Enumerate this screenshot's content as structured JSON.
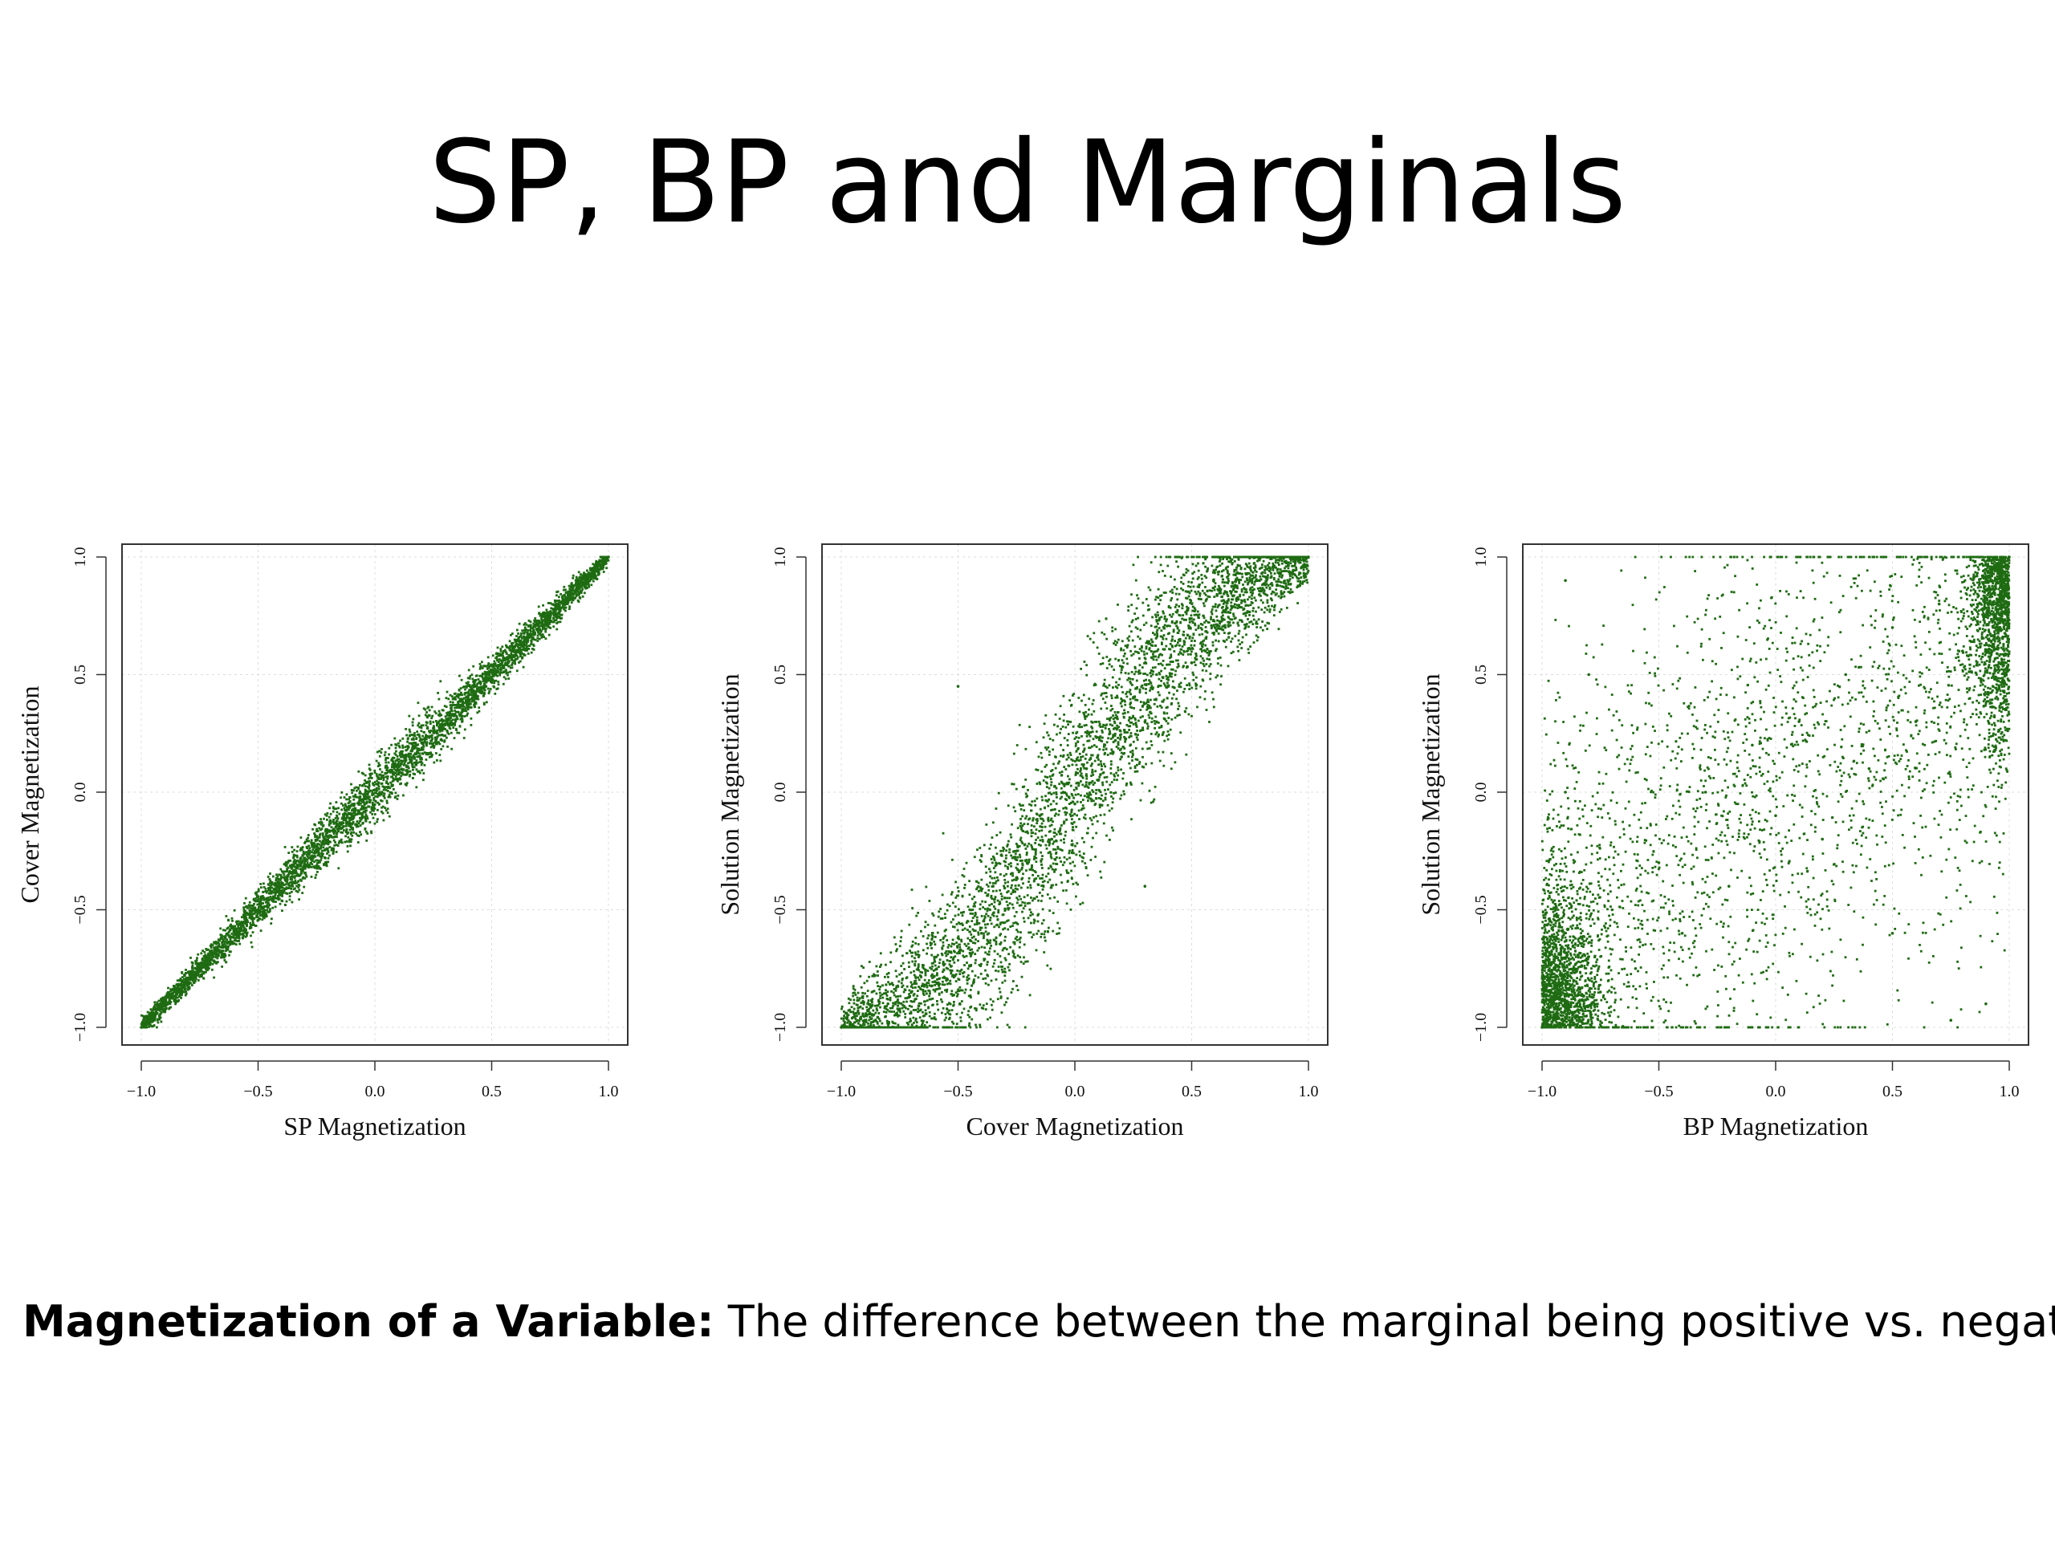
{
  "slide": {
    "title": "SP, BP and Marginals",
    "definition_term": "Magnetization of a Variable:",
    "definition_text": " The difference between the marginal being positive vs. negative",
    "point_color": "#1e6b12"
  },
  "chart_data": [
    {
      "type": "scatter",
      "title": "",
      "xlabel": "SP Magnetization",
      "ylabel": "Cover Magnetization",
      "xlim": [
        -1.0,
        1.0
      ],
      "ylim": [
        -1.0,
        1.0
      ],
      "xticks": [
        -1.0,
        -0.5,
        0.0,
        0.5,
        1.0
      ],
      "yticks": [
        -1.0,
        -0.5,
        0.0,
        0.5,
        1.0
      ],
      "xtick_labels": [
        "−1.0",
        "−0.5",
        "0.0",
        "0.5",
        "1.0"
      ],
      "ytick_labels": [
        "−1.0",
        "−0.5",
        "0.0",
        "0.5",
        "1.0"
      ],
      "grid": true,
      "trend": "tight linear band along y = x",
      "points": [
        [
          -1.0,
          -1.0
        ],
        [
          -0.95,
          -0.96
        ],
        [
          -0.9,
          -0.89
        ],
        [
          -0.85,
          -0.86
        ],
        [
          -0.8,
          -0.79
        ],
        [
          -0.75,
          -0.76
        ],
        [
          -0.7,
          -0.69
        ],
        [
          -0.65,
          -0.66
        ],
        [
          -0.6,
          -0.58
        ],
        [
          -0.55,
          -0.56
        ],
        [
          -0.5,
          -0.5
        ],
        [
          -0.45,
          -0.43
        ],
        [
          -0.4,
          -0.42
        ],
        [
          -0.35,
          -0.34
        ],
        [
          -0.3,
          -0.31
        ],
        [
          -0.25,
          -0.23
        ],
        [
          -0.2,
          -0.22
        ],
        [
          -0.15,
          -0.13
        ],
        [
          -0.1,
          -0.11
        ],
        [
          -0.05,
          -0.03
        ],
        [
          0.0,
          0.01
        ],
        [
          0.05,
          0.04
        ],
        [
          0.1,
          0.12
        ],
        [
          0.15,
          0.14
        ],
        [
          0.2,
          0.21
        ],
        [
          0.25,
          0.26
        ],
        [
          0.3,
          0.29
        ],
        [
          0.35,
          0.37
        ],
        [
          0.4,
          0.39
        ],
        [
          0.45,
          0.47
        ],
        [
          0.5,
          0.49
        ],
        [
          0.55,
          0.57
        ],
        [
          0.6,
          0.58
        ],
        [
          0.65,
          0.66
        ],
        [
          0.7,
          0.71
        ],
        [
          0.75,
          0.74
        ],
        [
          0.8,
          0.81
        ],
        [
          0.85,
          0.84
        ],
        [
          0.9,
          0.91
        ],
        [
          0.95,
          0.94
        ],
        [
          1.0,
          1.0
        ]
      ]
    },
    {
      "type": "scatter",
      "title": "",
      "xlabel": "Cover Magnetization",
      "ylabel": "Solution Magnetization",
      "xlim": [
        -1.0,
        1.0
      ],
      "ylim": [
        -1.0,
        1.0
      ],
      "xticks": [
        -1.0,
        -0.5,
        0.0,
        0.5,
        1.0
      ],
      "yticks": [
        -1.0,
        -0.5,
        0.0,
        0.5,
        1.0
      ],
      "xtick_labels": [
        "−1.0",
        "−0.5",
        "0.0",
        "0.5",
        "1.0"
      ],
      "ytick_labels": [
        "−1.0",
        "−0.5",
        "0.0",
        "0.5",
        "1.0"
      ],
      "grid": true,
      "trend": "broad S-shaped band, saturating near (-1,-1) and (1,1)",
      "points": [
        [
          -1.0,
          -1.0
        ],
        [
          -0.9,
          -0.97
        ],
        [
          -0.8,
          -0.9
        ],
        [
          -0.7,
          -0.85
        ],
        [
          -0.6,
          -0.72
        ],
        [
          -0.55,
          -0.8
        ],
        [
          -0.5,
          -0.62
        ],
        [
          -0.45,
          -0.5
        ],
        [
          -0.4,
          -0.6
        ],
        [
          -0.35,
          -0.4
        ],
        [
          -0.3,
          -0.45
        ],
        [
          -0.25,
          -0.25
        ],
        [
          -0.2,
          -0.3
        ],
        [
          -0.15,
          -0.1
        ],
        [
          -0.1,
          -0.2
        ],
        [
          -0.05,
          0.0
        ],
        [
          0.0,
          -0.05
        ],
        [
          0.05,
          0.1
        ],
        [
          0.1,
          0.05
        ],
        [
          0.15,
          0.25
        ],
        [
          0.2,
          0.15
        ],
        [
          0.25,
          0.4
        ],
        [
          0.3,
          0.3
        ],
        [
          0.35,
          0.5
        ],
        [
          0.4,
          0.45
        ],
        [
          0.45,
          0.65
        ],
        [
          0.5,
          0.55
        ],
        [
          0.55,
          0.75
        ],
        [
          0.6,
          0.7
        ],
        [
          0.65,
          0.85
        ],
        [
          0.7,
          0.82
        ],
        [
          0.75,
          0.9
        ],
        [
          0.8,
          0.93
        ],
        [
          0.85,
          0.96
        ],
        [
          0.9,
          0.98
        ],
        [
          0.95,
          0.99
        ],
        [
          1.0,
          1.0
        ],
        [
          -0.5,
          0.45
        ],
        [
          0.3,
          -0.4
        ],
        [
          0.5,
          0.55
        ]
      ]
    },
    {
      "type": "scatter",
      "title": "",
      "xlabel": "BP Magnetization",
      "ylabel": "Solution Magnetization",
      "xlim": [
        -1.0,
        1.0
      ],
      "ylim": [
        -1.0,
        1.0
      ],
      "xticks": [
        -1.0,
        -0.5,
        0.0,
        0.5,
        1.0
      ],
      "yticks": [
        -1.0,
        -0.5,
        0.0,
        0.5,
        1.0
      ],
      "xtick_labels": [
        "−1.0",
        "−0.5",
        "0.0",
        "0.5",
        "1.0"
      ],
      "ytick_labels": [
        "−1.0",
        "−0.5",
        "0.0",
        "0.5",
        "1.0"
      ],
      "grid": true,
      "trend": "widely dispersed cloud, dense clusters near (-1,-1) and (1,1)",
      "points": [
        [
          -1.0,
          -1.0
        ],
        [
          -0.95,
          -0.9
        ],
        [
          -0.9,
          -0.8
        ],
        [
          -0.85,
          -0.95
        ],
        [
          -0.8,
          -0.7
        ],
        [
          -0.75,
          -0.85
        ],
        [
          -0.7,
          -0.5
        ],
        [
          -0.6,
          -0.75
        ],
        [
          -0.5,
          -0.3
        ],
        [
          -0.4,
          -0.6
        ],
        [
          -0.3,
          0.0
        ],
        [
          -0.2,
          -0.4
        ],
        [
          -0.1,
          0.2
        ],
        [
          0.0,
          -0.1
        ],
        [
          0.1,
          0.3
        ],
        [
          0.2,
          -0.2
        ],
        [
          0.3,
          0.5
        ],
        [
          0.4,
          0.1
        ],
        [
          0.5,
          0.7
        ],
        [
          0.6,
          0.3
        ],
        [
          0.7,
          0.8
        ],
        [
          0.8,
          0.6
        ],
        [
          0.9,
          0.9
        ],
        [
          0.95,
          0.95
        ],
        [
          1.0,
          1.0
        ],
        [
          -0.9,
          0.9
        ],
        [
          -0.8,
          0.5
        ],
        [
          -0.9,
          0.0
        ],
        [
          0.9,
          -0.9
        ],
        [
          0.75,
          -0.97
        ],
        [
          0.5,
          -0.6
        ]
      ]
    }
  ]
}
